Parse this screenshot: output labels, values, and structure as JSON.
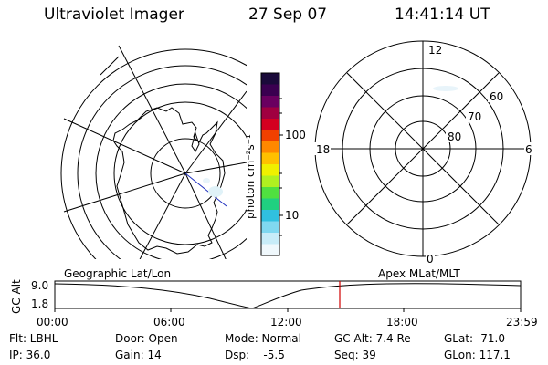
{
  "header": {
    "instrument": "Ultraviolet Imager",
    "date": "27 Sep 07",
    "time": "14:41:14 UT"
  },
  "geo_panel": {
    "label": "Geographic Lat/Lon"
  },
  "apex_panel": {
    "label": "Apex MLat/MLT",
    "mlt_labels": [
      "12",
      "18",
      "6",
      "0"
    ],
    "mlat_labels": [
      "60",
      "70",
      "80"
    ]
  },
  "colorbar": {
    "unit_label": "photon cm⁻²s⁻¹",
    "ticks": [
      "100",
      "10"
    ],
    "colors": [
      "#1a0a3a",
      "#3a0050",
      "#6a0060",
      "#a00040",
      "#d40020",
      "#f04000",
      "#ff8800",
      "#ffc000",
      "#f0f000",
      "#b0f020",
      "#50e040",
      "#20d080",
      "#30c0e0",
      "#80d8f0",
      "#c8ecf8",
      "#f0f8fc"
    ]
  },
  "orbit_plot": {
    "ylabel": "GC Alt",
    "yticks": [
      "9.0",
      "1.8"
    ],
    "xticks": [
      "00:00",
      "06:00",
      "12:00",
      "18:00",
      "23:59"
    ],
    "marker_color": "#d00000"
  },
  "footer": {
    "flt": "Flt: LBHL",
    "ip": "IP: 36.0",
    "door": "Door: Open",
    "gain": "Gain: 14",
    "mode": "Mode: Normal",
    "dsp": "Dsp:    -5.5",
    "gcalt": "GC Alt: 7.4 Re",
    "seq": "Seq: 39",
    "glat": "GLat: -71.0",
    "glon": "GLon: 117.1"
  }
}
